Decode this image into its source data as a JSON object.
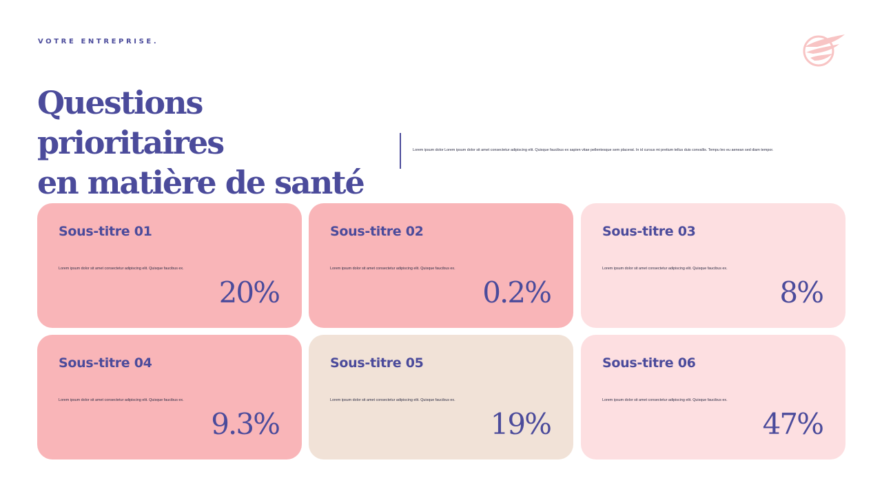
{
  "header": {
    "brand": "VOTRE ENTREPRISE.",
    "logo_icon": "wing-badge-icon"
  },
  "title": {
    "line1": "Questions prioritaires",
    "line2": "en matière de santé"
  },
  "intro": "Lorem ipsum dolor Lorem ipsum dolor sit amet consectetur adipiscing elit. Quisque faucibus ex sapien vitae pellentesque sem placerat. In id cursus mi pretium tellus duis convallis. Tempu leo eu aenean sed diam tempor.",
  "colors": {
    "accent": "#4b4b9b",
    "pink": "#f9b5b8",
    "light_pink": "#fddfe1",
    "beige": "#f1e2d7",
    "logo": "#f8c4c4"
  },
  "cards": [
    {
      "title": "Sous-titre 01",
      "text": "Lorem ipsum dolor sit amet consectetur adipiscing elit. Quisque faucibus ex.",
      "value": "20%",
      "color": "#f9b5b8"
    },
    {
      "title": "Sous-titre 02",
      "text": "Lorem ipsum dolor sit amet consectetur adipiscing elit. Quisque faucibus ex.",
      "value": "0.2%",
      "color": "#f9b5b8"
    },
    {
      "title": "Sous-titre 03",
      "text": "Lorem ipsum dolor sit amet consectetur adipiscing elit. Quisque faucibus ex.",
      "value": "8%",
      "color": "#fddfe1"
    },
    {
      "title": "Sous-titre 04",
      "text": "Lorem ipsum dolor sit amet consectetur adipiscing elit. Quisque faucibus ex.",
      "value": "9.3%",
      "color": "#f9b5b8"
    },
    {
      "title": "Sous-titre 05",
      "text": "Lorem ipsum dolor sit amet consectetur adipiscing elit. Quisque faucibus ex.",
      "value": "19%",
      "color": "#f1e2d7"
    },
    {
      "title": "Sous-titre 06",
      "text": "Lorem ipsum dolor sit amet consectetur adipiscing elit. Quisque faucibus ex.",
      "value": "47%",
      "color": "#fddfe1"
    }
  ]
}
